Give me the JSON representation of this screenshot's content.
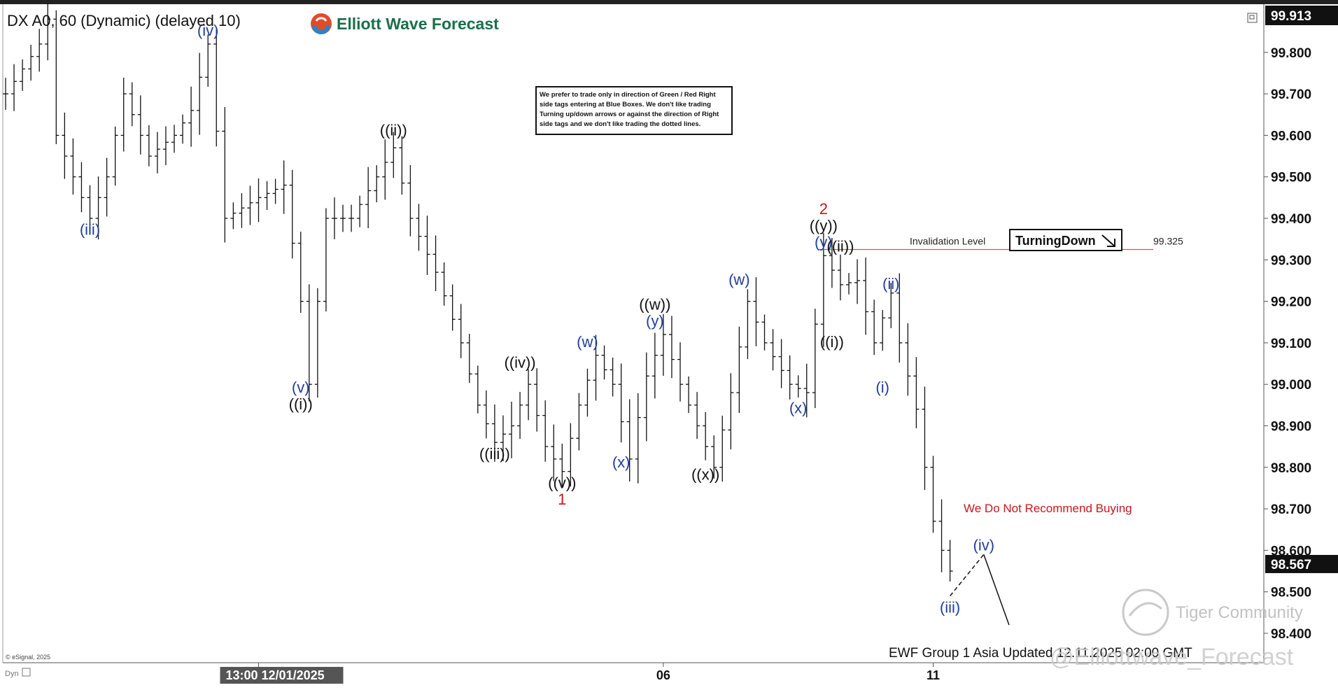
{
  "header": {
    "symbol_title": "DX A0, 60 (Dynamic) (delayed 10)",
    "logo_text": "Elliott Wave Forecast"
  },
  "notice_box": {
    "lines": [
      "We prefer to trade only in direction of Green / Red Right",
      "side tags entering at Blue Boxes. We don't like trading",
      "Turning up/down arrows or against the direction of Right",
      "side tags and we don't like trading the dotted lines."
    ]
  },
  "chart_data": {
    "type": "ohlc",
    "ylim": [
      98.4,
      99.913
    ],
    "y_ticks": [
      "99.800",
      "99.700",
      "99.600",
      "99.500",
      "99.400",
      "99.300",
      "99.200",
      "99.100",
      "99.000",
      "98.900",
      "98.800",
      "98.700",
      "98.600",
      "98.500",
      "98.400"
    ],
    "x_ticks": [
      {
        "label": "13:00 12/01/2025",
        "index": 30,
        "highlight": true
      },
      {
        "label": "06",
        "index": 78,
        "highlight": false
      },
      {
        "label": "11",
        "index": 110,
        "highlight": false
      }
    ],
    "top_price_label": "99.913",
    "last_price_label": "98.567",
    "last_price": 98.567,
    "bar_count": 120,
    "path_points": [
      [
        0,
        99.7
      ],
      [
        4,
        99.82
      ],
      [
        5,
        99.88
      ],
      [
        6,
        99.6
      ],
      [
        10,
        99.4
      ],
      [
        12,
        99.5
      ],
      [
        14,
        99.7
      ],
      [
        17,
        99.55
      ],
      [
        20,
        99.6
      ],
      [
        22,
        99.66
      ],
      [
        24,
        99.82
      ],
      [
        26,
        99.4
      ],
      [
        30,
        99.45
      ],
      [
        33,
        99.48
      ],
      [
        35,
        99.2
      ],
      [
        36,
        99.0
      ],
      [
        38,
        99.4
      ],
      [
        41,
        99.4
      ],
      [
        44,
        99.5
      ],
      [
        46,
        99.57
      ],
      [
        48,
        99.4
      ],
      [
        51,
        99.27
      ],
      [
        54,
        99.1
      ],
      [
        56,
        98.95
      ],
      [
        58,
        98.86
      ],
      [
        60,
        98.9
      ],
      [
        62,
        99.0
      ],
      [
        64,
        98.85
      ],
      [
        66,
        98.79
      ],
      [
        68,
        98.95
      ],
      [
        70,
        99.07
      ],
      [
        72,
        99.0
      ],
      [
        74,
        98.82
      ],
      [
        76,
        99.02
      ],
      [
        78,
        99.12
      ],
      [
        80,
        99.0
      ],
      [
        82,
        98.9
      ],
      [
        84,
        98.8
      ],
      [
        86,
        98.98
      ],
      [
        88,
        99.2
      ],
      [
        90,
        99.1
      ],
      [
        93,
        99.0
      ],
      [
        95,
        98.98
      ],
      [
        97,
        99.31
      ],
      [
        99,
        99.24
      ],
      [
        101,
        99.25
      ],
      [
        103,
        99.1
      ],
      [
        105,
        99.22
      ],
      [
        106,
        99.1
      ],
      [
        108,
        98.94
      ],
      [
        109,
        98.8
      ],
      [
        110,
        98.67
      ],
      [
        111,
        98.6
      ],
      [
        112,
        98.55
      ]
    ],
    "projection": {
      "points": [
        [
          112,
          98.49
        ],
        [
          116,
          98.59
        ],
        [
          119,
          98.42
        ]
      ],
      "labels": [
        "(iii)",
        "(iv)"
      ]
    },
    "wave_labels": [
      {
        "text": "(iii)",
        "index": 10,
        "y": 99.36,
        "color": "blue"
      },
      {
        "text": "(iv)",
        "index": 24,
        "y": 99.84,
        "color": "blue"
      },
      {
        "text": "(v)",
        "index": 35,
        "y": 98.98,
        "color": "blue"
      },
      {
        "text": "((i))",
        "index": 35,
        "y": 98.94,
        "color": "black"
      },
      {
        "text": "((ii))",
        "index": 46,
        "y": 99.6,
        "color": "black"
      },
      {
        "text": "((iii))",
        "index": 58,
        "y": 98.82,
        "color": "black"
      },
      {
        "text": "((iv))",
        "index": 61,
        "y": 99.04,
        "color": "black"
      },
      {
        "text": "((v))",
        "index": 66,
        "y": 98.75,
        "color": "black"
      },
      {
        "text": "1",
        "index": 66,
        "y": 98.71,
        "color": "red"
      },
      {
        "text": "(w)",
        "index": 69,
        "y": 99.09,
        "color": "blue"
      },
      {
        "text": "(x)",
        "index": 73,
        "y": 98.8,
        "color": "blue"
      },
      {
        "text": "((w))",
        "index": 77,
        "y": 99.18,
        "color": "black"
      },
      {
        "text": "(y)",
        "index": 77,
        "y": 99.14,
        "color": "blue"
      },
      {
        "text": "((x))",
        "index": 83,
        "y": 98.77,
        "color": "black"
      },
      {
        "text": "(w)",
        "index": 87,
        "y": 99.24,
        "color": "blue"
      },
      {
        "text": "(x)",
        "index": 94,
        "y": 98.93,
        "color": "blue"
      },
      {
        "text": "2",
        "index": 97,
        "y": 99.41,
        "color": "red"
      },
      {
        "text": "((y))",
        "index": 97,
        "y": 99.37,
        "color": "black"
      },
      {
        "text": "(y)",
        "index": 97,
        "y": 99.33,
        "color": "blue"
      },
      {
        "text": "((ii))",
        "index": 99,
        "y": 99.32,
        "color": "black"
      },
      {
        "text": "((i))",
        "index": 98,
        "y": 99.09,
        "color": "black"
      },
      {
        "text": "(ii)",
        "index": 105,
        "y": 99.23,
        "color": "blue"
      },
      {
        "text": "(i)",
        "index": 104,
        "y": 98.98,
        "color": "blue"
      }
    ],
    "invalidation": {
      "label": "Invalidation Level",
      "value_label": "99.325",
      "price": 99.325
    },
    "annotations": {
      "turning_down": "TurningDown",
      "no_buy": "We Do Not Recommend Buying"
    },
    "colors": {
      "bars": "#111111",
      "wave_blue": "#1f3f9c",
      "wave_red": "#c8161d",
      "invalidation_line": "#d9534f",
      "price_tag_bg": "#111111"
    }
  },
  "footer": {
    "updated": "EWF Group 1 Asia Updated 12.11.2025 02:00 GMT",
    "copyright": "© eSignal, 2025",
    "dyn": "Dyn",
    "watermark_handle": "@Elliottwave_Forecast",
    "watermark_tiger": "Tiger Community"
  }
}
